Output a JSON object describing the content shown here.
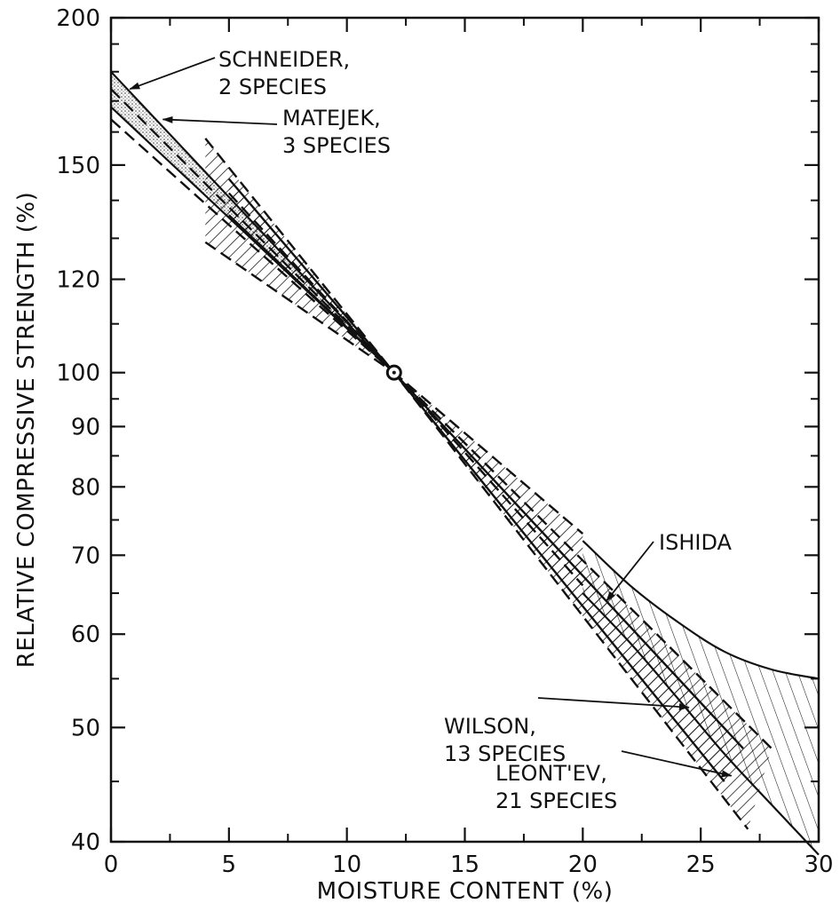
{
  "chart_data": {
    "type": "line",
    "title": "",
    "xlabel": "MOISTURE CONTENT (%)",
    "ylabel": "RELATIVE COMPRESSIVE STRENGTH (%)",
    "xlim": [
      0,
      30
    ],
    "ylim": [
      40,
      200
    ],
    "yscale": "log",
    "grid": false,
    "xticks": [
      0,
      5,
      10,
      15,
      20,
      25,
      30
    ],
    "yticks": [
      40,
      50,
      60,
      70,
      80,
      90,
      100,
      120,
      150,
      200
    ],
    "reference_point": {
      "x": 12,
      "y": 100
    },
    "series": [
      {
        "name": "SCHNEIDER, 2 SPECIES",
        "style": "stippled band",
        "upper": {
          "x": [
            0,
            12
          ],
          "y": [
            180,
            100
          ]
        },
        "lower": {
          "x": [
            0,
            12
          ],
          "y": [
            168,
            100
          ]
        }
      },
      {
        "name": "MATEJEK, 3 SPECIES",
        "style": "dashed band",
        "upper": {
          "x": [
            0,
            12
          ],
          "y": [
            174,
            100
          ]
        },
        "lower": {
          "x": [
            0,
            12
          ],
          "y": [
            164,
            100
          ]
        }
      },
      {
        "name": "WILSON, 13 SPECIES",
        "style": "dashed band, hatched",
        "upper": {
          "x": [
            4,
            12,
            28
          ],
          "y": [
            158,
            100,
            48
          ]
        },
        "lower": {
          "x": [
            4,
            12,
            27
          ],
          "y": [
            129,
            100,
            41
          ]
        }
      },
      {
        "name": "LEONT'EV, 21 SPECIES",
        "style": "solid band, hatched",
        "upper": {
          "x": [
            5,
            12,
            26.8
          ],
          "y": [
            146,
            100,
            48
          ]
        },
        "lower": {
          "x": [
            5,
            12,
            26
          ],
          "y": [
            136,
            100,
            45
          ]
        }
      },
      {
        "name": "ISHIDA",
        "style": "dashed band, hatched",
        "upper": {
          "x": [
            5,
            12,
            20
          ],
          "y": [
            142,
            100,
            73
          ]
        },
        "lower": {
          "x": [
            5,
            12,
            20
          ],
          "y": [
            136,
            100,
            66
          ]
        }
      },
      {
        "name": "",
        "style": "solid curved band, hatched",
        "upper": {
          "x": [
            20,
            22,
            24,
            26,
            28,
            30
          ],
          "y": [
            72,
            66,
            61.5,
            58,
            56,
            55
          ]
        },
        "lower": {
          "x": [
            20,
            22,
            24,
            26,
            28,
            30
          ],
          "y": [
            65,
            59,
            53,
            47.5,
            43,
            39
          ]
        }
      }
    ],
    "annotations": [
      {
        "lines": [
          "SCHNEIDER,",
          "2 SPECIES"
        ],
        "points_to": {
          "x": 0.8,
          "y": 174
        }
      },
      {
        "lines": [
          "MATEJEK,",
          "3 SPECIES"
        ],
        "points_to": {
          "x": 2.2,
          "y": 164
        }
      },
      {
        "lines": [
          "ISHIDA"
        ],
        "points_to": {
          "x": 21,
          "y": 64
        }
      },
      {
        "lines": [
          "WILSON,",
          "13 SPECIES"
        ],
        "points_to": {
          "x": 24.5,
          "y": 52
        }
      },
      {
        "lines": [
          "LEONT'EV,",
          "21 SPECIES"
        ],
        "points_to": {
          "x": 26.3,
          "y": 45.5
        }
      }
    ]
  }
}
